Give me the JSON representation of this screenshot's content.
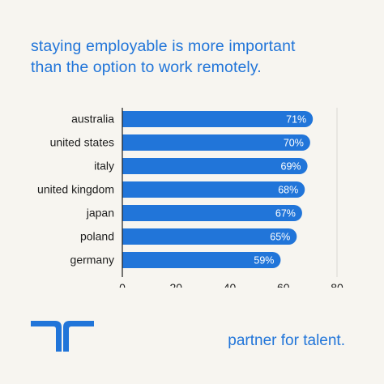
{
  "headline": {
    "line1": "staying employable is more important",
    "line2": "than the option to work remotely."
  },
  "footer": {
    "tagline": "partner for talent."
  },
  "colors": {
    "background": "#f7f5f0",
    "accent": "#2175d9",
    "bar_label": "#ffffff",
    "text": "#1c1c1c",
    "grid": "#d9d7d2"
  },
  "chart_data": {
    "type": "bar",
    "orientation": "horizontal",
    "categories": [
      "australia",
      "united states",
      "italy",
      "united kingdom",
      "japan",
      "poland",
      "germany"
    ],
    "values": [
      71,
      70,
      69,
      68,
      67,
      65,
      59
    ],
    "data_labels": [
      "71%",
      "70%",
      "69%",
      "68%",
      "67%",
      "65%",
      "59%"
    ],
    "xlim": [
      0,
      80
    ],
    "xticks": [
      0,
      20,
      40,
      60,
      80
    ],
    "title": "",
    "xlabel": "",
    "ylabel": "",
    "grid": "vertical line at 80",
    "legend": "none"
  }
}
